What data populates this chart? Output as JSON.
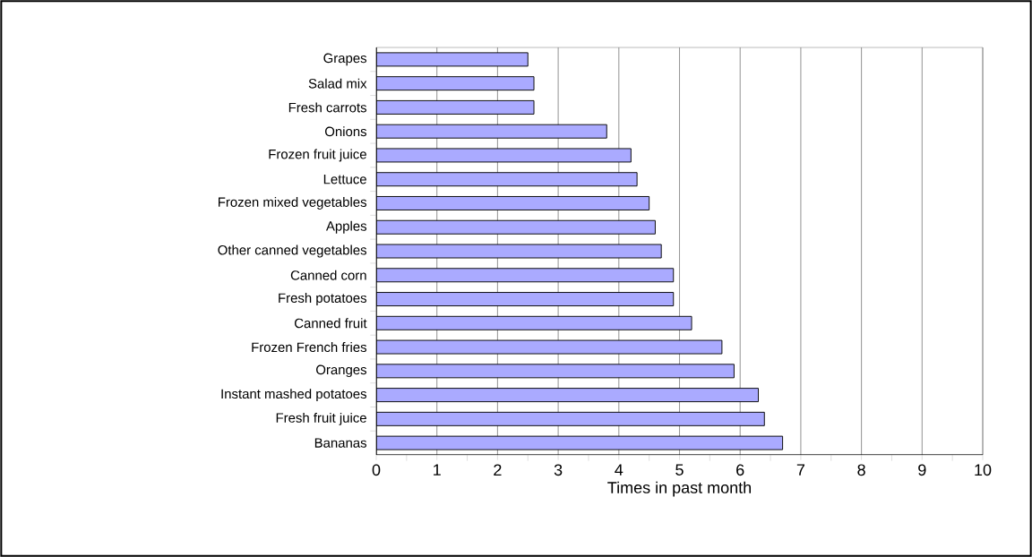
{
  "chart_data": {
    "type": "bar",
    "orientation": "horizontal",
    "xlabel": "Times in past month",
    "categories": [
      "Grapes",
      "Salad mix",
      "Fresh carrots",
      "Onions",
      "Frozen fruit juice",
      "Lettuce",
      "Frozen mixed vegetables",
      "Apples",
      "Other canned vegetables",
      "Canned corn",
      "Fresh potatoes",
      "Canned fruit",
      "Frozen French fries",
      "Oranges",
      "Instant mashed potatoes",
      "Fresh fruit juice",
      "Bananas"
    ],
    "values": [
      2.5,
      2.6,
      2.6,
      3.8,
      4.2,
      4.3,
      4.5,
      4.6,
      4.7,
      4.9,
      4.9,
      5.2,
      5.7,
      5.9,
      6.3,
      6.4,
      6.7
    ],
    "color": "#aaaaff",
    "xlim": [
      0,
      10
    ],
    "xticks": [
      0,
      1,
      2,
      3,
      4,
      5,
      6,
      7,
      8,
      9,
      10
    ],
    "grid": "x"
  }
}
